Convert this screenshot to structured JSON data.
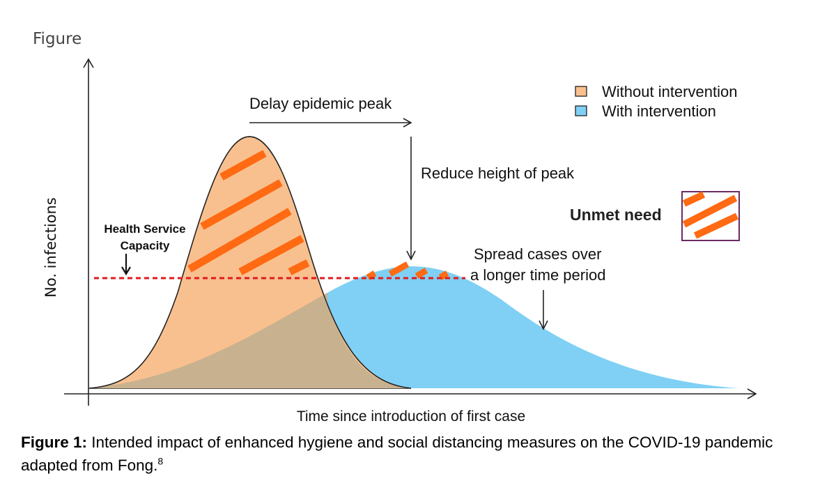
{
  "corner_label": "Figure",
  "y_axis_label": "No. infections",
  "x_axis_label": "Time since introduction of first case",
  "legend": {
    "items": [
      {
        "label": "Without intervention",
        "color": "#f9c08f"
      },
      {
        "label": "With intervention",
        "color": "#7fd0f4"
      }
    ]
  },
  "annotations": {
    "delay_peak": "Delay epidemic peak",
    "reduce_height": "Reduce height of peak",
    "spread_line1": "Spread cases over",
    "spread_line2": "a longer time period",
    "capacity_line1": "Health Service",
    "capacity_line2": "Capacity",
    "unmet_need": "Unmet need"
  },
  "colors": {
    "without_fill": "#f9c08f",
    "with_fill": "#7fd0f4",
    "overlap_fill": "#c8b18e",
    "hatch": "#ff6a13",
    "capacity_line": "#e0191e",
    "unmet_box": "#6a2a64"
  },
  "caption": {
    "label": "Figure 1:",
    "text": " Intended impact of enhanced hygiene and social distancing measures on the COVID-19 pandemic adapted from Fong.",
    "ref": "8"
  }
}
